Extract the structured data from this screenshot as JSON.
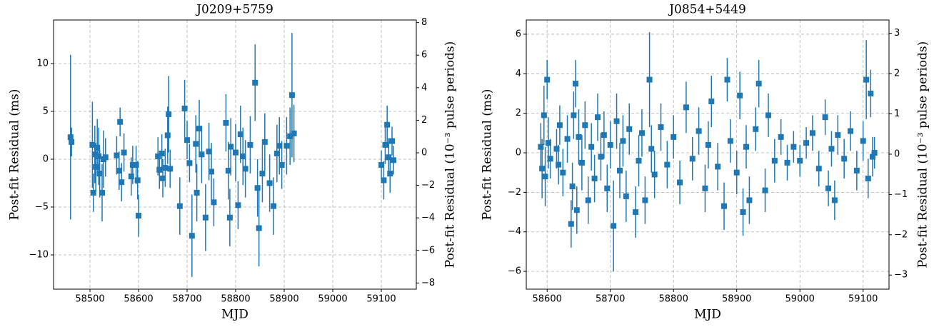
{
  "chart_data": [
    {
      "type": "scatter",
      "title": "J0209+5759",
      "xlabel": "MJD",
      "ylabel": "Post-fit Residual (ms)",
      "y2label": "Post-fit Residual (10⁻³ pulse periods)",
      "xlim": [
        58425,
        59172
      ],
      "ylim": [
        -13.58,
        14.55
      ],
      "y2lim": [
        -8.38,
        8.16
      ],
      "xticks": [
        58500,
        58600,
        58700,
        58800,
        58900,
        59000,
        59100
      ],
      "yticks": [
        {
          "value": -10,
          "label": "−10"
        },
        {
          "value": -5,
          "label": "−5"
        },
        0,
        5,
        10
      ],
      "y2ticks": [
        {
          "value": -8,
          "label": "−8"
        },
        {
          "value": -6,
          "label": "−6"
        },
        {
          "value": -4,
          "label": "−4"
        },
        {
          "value": -2,
          "label": "−2"
        },
        0,
        2,
        4,
        6,
        8
      ],
      "grid": true,
      "color": "#1f77b4",
      "x": [
        58460,
        58462,
        58505,
        58507,
        58510,
        58512,
        58515,
        58518,
        58520,
        58525,
        58528,
        58532,
        58555,
        58560,
        58562,
        58565,
        58570,
        58585,
        58588,
        58595,
        58598,
        58600,
        58640,
        58643,
        58648,
        58650,
        58655,
        58660,
        58662,
        58665,
        58685,
        58695,
        58700,
        58705,
        58710,
        58718,
        58720,
        58725,
        58730,
        58738,
        58745,
        58750,
        58755,
        58780,
        58785,
        58788,
        58790,
        58800,
        58805,
        58810,
        58815,
        58820,
        58830,
        58840,
        58845,
        58848,
        58855,
        58860,
        58870,
        58878,
        58885,
        58890,
        58895,
        58905,
        58912,
        58916,
        58920,
        59100,
        59105,
        59108,
        59112,
        59115,
        59118,
        59122,
        59125
      ],
      "values": [
        2.3,
        1.8,
        1.5,
        -3.5,
        0.5,
        -0.8,
        1.2,
        0.3,
        -1.5,
        -3.5,
        0,
        0.2,
        0.4,
        -1.2,
        3.9,
        -2.4,
        0.7,
        -1.8,
        -0.6,
        -0.6,
        -2.2,
        -5.9,
        0.3,
        -1.1,
        0.6,
        -2,
        -0.9,
        2.5,
        4.7,
        -1,
        -4.9,
        5.3,
        2,
        -0.4,
        -8,
        1.6,
        -3.5,
        3.2,
        0.5,
        -6.1,
        0.8,
        -1.3,
        -4.5,
        3.8,
        -1.2,
        -6.1,
        1.3,
        0.7,
        -4.8,
        2.6,
        0.3,
        -1,
        1.5,
        8,
        -3,
        -7.2,
        -1.5,
        1.8,
        -2.5,
        -4.9,
        0.6,
        1.4,
        -0.6,
        1.4,
        2.4,
        6.7,
        2.7,
        -0.6,
        -2.2,
        1.5,
        3.6,
        0.2,
        -1.5,
        1.9,
        -0.1
      ],
      "errors": [
        8.6,
        1.5,
        4.5,
        2,
        3,
        2.5,
        3,
        3,
        2.5,
        3,
        3,
        2,
        2,
        2,
        1.5,
        2,
        2,
        2,
        2,
        2,
        2,
        2.2,
        2,
        2,
        2,
        2,
        2,
        3,
        4,
        2,
        3,
        3,
        2,
        2,
        4.3,
        3,
        3,
        3,
        3,
        3.5,
        3,
        3,
        2.5,
        3,
        3,
        3,
        3,
        3,
        2.5,
        3,
        3,
        3,
        3,
        4,
        3,
        4,
        3,
        3,
        3,
        3,
        3,
        3,
        2.5,
        3,
        3,
        6.5,
        3,
        1.5,
        2,
        2,
        2,
        2,
        2,
        1.5,
        1.5
      ]
    },
    {
      "type": "scatter",
      "title": "J0854+5449",
      "xlabel": "MJD",
      "ylabel": "Post-fit Residual (ms)",
      "y2label": "Post-fit Residual (10⁻³ pulse periods)",
      "xlim": [
        58567,
        59141
      ],
      "ylim": [
        -6.9,
        6.72
      ],
      "y2lim": [
        -3.35,
        3.33
      ],
      "xticks": [
        58600,
        58700,
        58800,
        58900,
        59000,
        59100
      ],
      "yticks": [
        {
          "value": -6,
          "label": "−6"
        },
        {
          "value": -4,
          "label": "−4"
        },
        {
          "value": -2,
          "label": "−2"
        },
        0,
        2,
        4,
        6
      ],
      "y2ticks": [
        {
          "value": -3,
          "label": "−3"
        },
        {
          "value": -2,
          "label": "−2"
        },
        {
          "value": -1,
          "label": "−1"
        },
        0,
        1,
        2,
        3
      ],
      "grid": true,
      "color": "#1f77b4",
      "x": [
        58590,
        58592,
        58595,
        58597,
        58600,
        58602,
        58605,
        58615,
        58618,
        58620,
        58625,
        58632,
        58638,
        58640,
        58642,
        58645,
        58647,
        58650,
        58655,
        58660,
        58665,
        58670,
        58675,
        58680,
        58685,
        58690,
        58695,
        58700,
        58705,
        58710,
        58715,
        58720,
        58725,
        58730,
        58740,
        58745,
        58750,
        58755,
        58762,
        58765,
        58770,
        58780,
        58790,
        58800,
        58810,
        58820,
        58830,
        58840,
        58850,
        58855,
        58860,
        58870,
        58880,
        58885,
        58890,
        58900,
        58905,
        58910,
        58915,
        58920,
        58930,
        58935,
        58945,
        58950,
        58960,
        58970,
        58980,
        58990,
        59000,
        59010,
        59020,
        59030,
        59040,
        59045,
        59050,
        59055,
        59060,
        59070,
        59080,
        59090,
        59100,
        59105,
        59108,
        59112,
        59115,
        59118
      ],
      "values": [
        0.3,
        -0.8,
        1.9,
        -1.2,
        3.7,
        0.5,
        -0.3,
        0.2,
        -0.6,
        1.4,
        -1,
        0.7,
        -3.6,
        -1.7,
        1.9,
        3.5,
        -2.9,
        0.8,
        -0.5,
        1.4,
        -2.4,
        0.3,
        -1.3,
        1.8,
        -0.2,
        0.9,
        -1.8,
        0.4,
        -3.7,
        1.6,
        -0.9,
        0.6,
        -2.2,
        1.2,
        -3,
        -0.4,
        1,
        -2.4,
        3.7,
        0.2,
        -1.1,
        1.3,
        -0.6,
        0.8,
        -1.5,
        2.3,
        -0.3,
        1.1,
        -1.8,
        0.4,
        2.6,
        -0.7,
        -2.7,
        3.7,
        0.6,
        -1,
        2.9,
        -3,
        0.3,
        -2.4,
        1.2,
        3.5,
        -1.9,
        1.9,
        -0.4,
        0.8,
        -0.5,
        0.3,
        -0.4,
        0.5,
        1,
        -0.8,
        1.8,
        -1.8,
        0.2,
        -2.4,
        0.9,
        -0.3,
        1.1,
        -0.9,
        0.6,
        3.7,
        -1.3,
        3,
        -0.2,
        0
      ],
      "errors": [
        1.2,
        1.5,
        1.5,
        1.5,
        1,
        1.3,
        1,
        1,
        1,
        1,
        1.2,
        1.2,
        1.2,
        1.2,
        1.2,
        1.2,
        1.2,
        1.4,
        1.4,
        1.2,
        1.2,
        1.2,
        1.2,
        1.2,
        1.2,
        1.2,
        1.2,
        1.2,
        2.3,
        1.4,
        1.4,
        1.3,
        1.3,
        1.3,
        1.3,
        1.3,
        1.2,
        1.2,
        2.4,
        1.2,
        1.2,
        1.2,
        1.2,
        1.1,
        1.1,
        1.3,
        1.1,
        1.2,
        1.2,
        1.2,
        1.3,
        1.2,
        1.2,
        1.1,
        1.1,
        1.1,
        1.2,
        1.2,
        1.1,
        1.2,
        1.1,
        1.2,
        1.1,
        1.1,
        1.1,
        0.9,
        0.9,
        0.8,
        0.8,
        0.8,
        0.9,
        0.9,
        0.9,
        0.9,
        0.9,
        1,
        1,
        1,
        1,
        1,
        1,
        2,
        1,
        1.2,
        1,
        0.8
      ]
    }
  ]
}
